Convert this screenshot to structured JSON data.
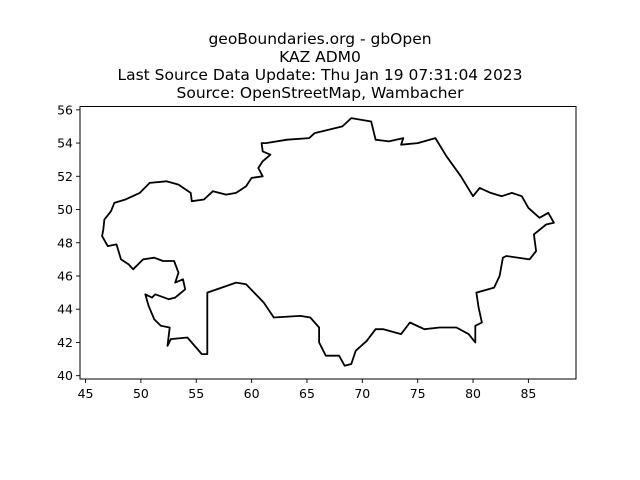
{
  "title": {
    "line1": "geoBoundaries.org - gbOpen",
    "line2": "KAZ ADM0",
    "line3": "Last Source Data Update: Thu Jan 19 07:31:04 2023",
    "line4": "Source: OpenStreetMap, Wambacher"
  },
  "chart_data": {
    "type": "map",
    "title": "geoBoundaries.org - gbOpen\nKAZ ADM0\nLast Source Data Update: Thu Jan 19 07:31:04 2023\nSource: OpenStreetMap, Wambacher",
    "xlabel": "",
    "ylabel": "",
    "xlim": [
      44.5,
      89.3
    ],
    "ylim": [
      39.8,
      56.2
    ],
    "xticks": [
      45,
      50,
      55,
      60,
      65,
      70,
      75,
      80,
      85
    ],
    "yticks": [
      40,
      42,
      44,
      46,
      48,
      50,
      52,
      54,
      56
    ],
    "grid": false,
    "boundary": [
      [
        46.5,
        48.4
      ],
      [
        47.0,
        47.8
      ],
      [
        47.8,
        47.9
      ],
      [
        48.2,
        47.0
      ],
      [
        48.9,
        46.7
      ],
      [
        49.3,
        46.4
      ],
      [
        50.2,
        47.0
      ],
      [
        51.2,
        47.1
      ],
      [
        52.0,
        46.9
      ],
      [
        53.0,
        46.9
      ],
      [
        53.4,
        46.2
      ],
      [
        53.1,
        45.6
      ],
      [
        53.8,
        45.8
      ],
      [
        54.0,
        45.2
      ],
      [
        53.1,
        44.7
      ],
      [
        52.5,
        44.6
      ],
      [
        51.3,
        44.9
      ],
      [
        51.0,
        44.7
      ],
      [
        50.4,
        44.9
      ],
      [
        50.7,
        44.2
      ],
      [
        51.2,
        43.4
      ],
      [
        51.8,
        43.0
      ],
      [
        52.6,
        42.9
      ],
      [
        52.4,
        41.8
      ],
      [
        52.7,
        42.2
      ],
      [
        54.2,
        42.3
      ],
      [
        55.5,
        41.3
      ],
      [
        56.0,
        41.3
      ],
      [
        56.0,
        45.0
      ],
      [
        58.6,
        45.6
      ],
      [
        59.5,
        45.5
      ],
      [
        61.1,
        44.4
      ],
      [
        62.0,
        43.5
      ],
      [
        64.4,
        43.6
      ],
      [
        65.3,
        43.5
      ],
      [
        66.1,
        42.9
      ],
      [
        66.1,
        42.0
      ],
      [
        66.7,
        41.2
      ],
      [
        67.9,
        41.2
      ],
      [
        68.4,
        40.6
      ],
      [
        69.0,
        40.7
      ],
      [
        69.4,
        41.5
      ],
      [
        70.4,
        42.1
      ],
      [
        71.2,
        42.8
      ],
      [
        71.9,
        42.8
      ],
      [
        73.5,
        42.5
      ],
      [
        74.3,
        43.2
      ],
      [
        75.6,
        42.8
      ],
      [
        77.0,
        42.9
      ],
      [
        78.5,
        42.9
      ],
      [
        79.6,
        42.5
      ],
      [
        80.2,
        42.0
      ],
      [
        80.2,
        43.0
      ],
      [
        80.8,
        43.2
      ],
      [
        80.5,
        44.1
      ],
      [
        80.3,
        45.0
      ],
      [
        81.9,
        45.3
      ],
      [
        82.4,
        46.0
      ],
      [
        82.7,
        47.1
      ],
      [
        83.0,
        47.2
      ],
      [
        85.1,
        47.0
      ],
      [
        85.7,
        47.5
      ],
      [
        85.5,
        48.5
      ],
      [
        86.6,
        49.1
      ],
      [
        87.3,
        49.2
      ],
      [
        86.8,
        49.8
      ],
      [
        86.0,
        49.5
      ],
      [
        85.0,
        50.1
      ],
      [
        84.4,
        50.8
      ],
      [
        83.5,
        51.0
      ],
      [
        82.6,
        50.8
      ],
      [
        81.6,
        51.0
      ],
      [
        80.6,
        51.3
      ],
      [
        80.0,
        50.8
      ],
      [
        78.9,
        52.0
      ],
      [
        77.6,
        53.2
      ],
      [
        76.6,
        54.3
      ],
      [
        75.0,
        54.0
      ],
      [
        73.5,
        53.9
      ],
      [
        73.7,
        54.3
      ],
      [
        72.4,
        54.1
      ],
      [
        71.2,
        54.2
      ],
      [
        70.8,
        55.3
      ],
      [
        69.0,
        55.5
      ],
      [
        68.2,
        55.0
      ],
      [
        65.7,
        54.6
      ],
      [
        65.2,
        54.3
      ],
      [
        63.2,
        54.2
      ],
      [
        61.3,
        54.0
      ],
      [
        60.9,
        54.0
      ],
      [
        61.0,
        53.5
      ],
      [
        61.7,
        53.3
      ],
      [
        61.0,
        52.9
      ],
      [
        60.6,
        52.5
      ],
      [
        61.0,
        52.0
      ],
      [
        60.0,
        51.9
      ],
      [
        59.5,
        51.4
      ],
      [
        58.6,
        51.0
      ],
      [
        57.7,
        50.9
      ],
      [
        56.5,
        51.1
      ],
      [
        55.7,
        50.6
      ],
      [
        54.6,
        50.5
      ],
      [
        54.5,
        51.0
      ],
      [
        53.4,
        51.5
      ],
      [
        52.3,
        51.7
      ],
      [
        50.8,
        51.6
      ],
      [
        49.9,
        51.0
      ],
      [
        48.6,
        50.6
      ],
      [
        47.6,
        50.4
      ],
      [
        47.3,
        49.9
      ],
      [
        46.7,
        49.4
      ],
      [
        46.6,
        48.8
      ],
      [
        46.5,
        48.4
      ]
    ]
  }
}
